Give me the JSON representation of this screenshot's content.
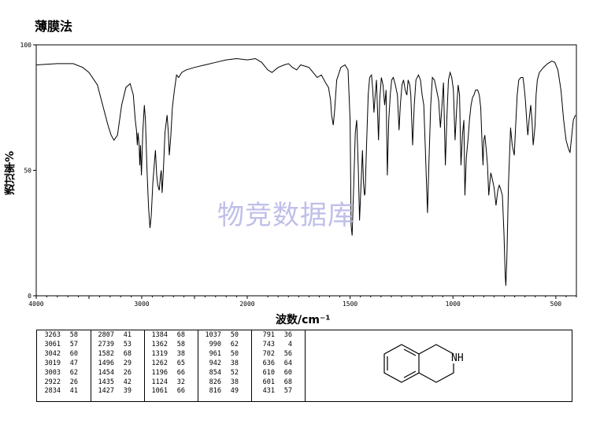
{
  "title": "薄膜法",
  "watermark": "物竞数据库",
  "chart_data": {
    "type": "line",
    "title": "薄膜法",
    "xlabel": "波数/cm⁻¹",
    "ylabel": "透过率%",
    "xlim": [
      4000,
      400
    ],
    "ylim": [
      0,
      100
    ],
    "x_ticks": [
      "4000",
      "3000",
      "2000",
      "1500",
      "1000",
      "500"
    ],
    "y_ticks": [
      "0",
      "50",
      "100"
    ],
    "series": [
      {
        "points": [
          [
            4000,
            92
          ],
          [
            3800,
            92.5
          ],
          [
            3650,
            92.5
          ],
          [
            3560,
            91
          ],
          [
            3500,
            89
          ],
          [
            3420,
            84
          ],
          [
            3370,
            76
          ],
          [
            3320,
            68
          ],
          [
            3290,
            64
          ],
          [
            3263,
            62
          ],
          [
            3230,
            64
          ],
          [
            3190,
            76
          ],
          [
            3150,
            83
          ],
          [
            3110,
            84.5
          ],
          [
            3080,
            80
          ],
          [
            3061,
            70
          ],
          [
            3050,
            66
          ],
          [
            3042,
            60
          ],
          [
            3035,
            65
          ],
          [
            3025,
            60
          ],
          [
            3019,
            52
          ],
          [
            3012,
            60
          ],
          [
            3003,
            48
          ],
          [
            2990,
            65
          ],
          [
            2975,
            76
          ],
          [
            2965,
            70
          ],
          [
            2950,
            50
          ],
          [
            2935,
            35
          ],
          [
            2922,
            27
          ],
          [
            2910,
            32
          ],
          [
            2895,
            45
          ],
          [
            2880,
            53
          ],
          [
            2870,
            58
          ],
          [
            2858,
            48
          ],
          [
            2848,
            44
          ],
          [
            2834,
            42
          ],
          [
            2822,
            48
          ],
          [
            2815,
            50
          ],
          [
            2807,
            41
          ],
          [
            2795,
            50
          ],
          [
            2780,
            65
          ],
          [
            2760,
            72
          ],
          [
            2748,
            65
          ],
          [
            2739,
            56
          ],
          [
            2725,
            63
          ],
          [
            2710,
            75
          ],
          [
            2690,
            82
          ],
          [
            2670,
            88
          ],
          [
            2650,
            87
          ],
          [
            2620,
            89
          ],
          [
            2580,
            90
          ],
          [
            2500,
            91
          ],
          [
            2400,
            92
          ],
          [
            2300,
            93
          ],
          [
            2200,
            94
          ],
          [
            2100,
            94.5
          ],
          [
            2000,
            94
          ],
          [
            1960,
            94.5
          ],
          [
            1930,
            93
          ],
          [
            1900,
            90
          ],
          [
            1880,
            89
          ],
          [
            1850,
            91
          ],
          [
            1820,
            92
          ],
          [
            1800,
            92.5
          ],
          [
            1780,
            91
          ],
          [
            1760,
            90
          ],
          [
            1740,
            92
          ],
          [
            1700,
            91
          ],
          [
            1680,
            89
          ],
          [
            1660,
            87
          ],
          [
            1640,
            88
          ],
          [
            1620,
            85
          ],
          [
            1605,
            83
          ],
          [
            1595,
            78
          ],
          [
            1590,
            72
          ],
          [
            1582,
            68
          ],
          [
            1575,
            74
          ],
          [
            1565,
            86
          ],
          [
            1545,
            91
          ],
          [
            1525,
            92
          ],
          [
            1510,
            90
          ],
          [
            1500,
            70
          ],
          [
            1495,
            28
          ],
          [
            1490,
            24
          ],
          [
            1482,
            45
          ],
          [
            1475,
            65
          ],
          [
            1468,
            70
          ],
          [
            1460,
            50
          ],
          [
            1454,
            30
          ],
          [
            1448,
            42
          ],
          [
            1440,
            58
          ],
          [
            1435,
            45
          ],
          [
            1430,
            40
          ],
          [
            1427,
            41
          ],
          [
            1420,
            60
          ],
          [
            1412,
            80
          ],
          [
            1405,
            87
          ],
          [
            1396,
            88
          ],
          [
            1390,
            82
          ],
          [
            1384,
            73
          ],
          [
            1378,
            80
          ],
          [
            1372,
            86
          ],
          [
            1362,
            62
          ],
          [
            1356,
            78
          ],
          [
            1348,
            87
          ],
          [
            1340,
            84
          ],
          [
            1332,
            76
          ],
          [
            1325,
            82
          ],
          [
            1319,
            48
          ],
          [
            1312,
            70
          ],
          [
            1305,
            80
          ],
          [
            1298,
            86
          ],
          [
            1290,
            87
          ],
          [
            1280,
            84
          ],
          [
            1270,
            80
          ],
          [
            1262,
            66
          ],
          [
            1256,
            76
          ],
          [
            1248,
            84
          ],
          [
            1240,
            86
          ],
          [
            1232,
            82
          ],
          [
            1224,
            80
          ],
          [
            1218,
            86
          ],
          [
            1210,
            84
          ],
          [
            1205,
            80
          ],
          [
            1196,
            60
          ],
          [
            1188,
            76
          ],
          [
            1180,
            86
          ],
          [
            1168,
            88
          ],
          [
            1158,
            86
          ],
          [
            1150,
            80
          ],
          [
            1142,
            76
          ],
          [
            1135,
            60
          ],
          [
            1124,
            33
          ],
          [
            1116,
            55
          ],
          [
            1108,
            76
          ],
          [
            1100,
            87
          ],
          [
            1090,
            86
          ],
          [
            1080,
            82
          ],
          [
            1070,
            78
          ],
          [
            1061,
            67
          ],
          [
            1054,
            75
          ],
          [
            1046,
            85
          ],
          [
            1037,
            52
          ],
          [
            1030,
            70
          ],
          [
            1022,
            86
          ],
          [
            1014,
            89
          ],
          [
            1006,
            87
          ],
          [
            998,
            82
          ],
          [
            990,
            62
          ],
          [
            982,
            75
          ],
          [
            975,
            84
          ],
          [
            968,
            80
          ],
          [
            961,
            52
          ],
          [
            954,
            64
          ],
          [
            947,
            70
          ],
          [
            942,
            40
          ],
          [
            935,
            55
          ],
          [
            927,
            62
          ],
          [
            920,
            70
          ],
          [
            912,
            76
          ],
          [
            905,
            79
          ],
          [
            898,
            80
          ],
          [
            890,
            82
          ],
          [
            880,
            82
          ],
          [
            872,
            80
          ],
          [
            865,
            75
          ],
          [
            858,
            60
          ],
          [
            854,
            52
          ],
          [
            850,
            62
          ],
          [
            845,
            64
          ],
          [
            838,
            58
          ],
          [
            832,
            52
          ],
          [
            826,
            40
          ],
          [
            822,
            44
          ],
          [
            816,
            49
          ],
          [
            810,
            47
          ],
          [
            805,
            45
          ],
          [
            800,
            43
          ],
          [
            791,
            36
          ],
          [
            782,
            42
          ],
          [
            775,
            44
          ],
          [
            770,
            43
          ],
          [
            760,
            40
          ],
          [
            752,
            25
          ],
          [
            746,
            8
          ],
          [
            743,
            4
          ],
          [
            738,
            15
          ],
          [
            730,
            45
          ],
          [
            720,
            67
          ],
          [
            712,
            60
          ],
          [
            702,
            56
          ],
          [
            695,
            68
          ],
          [
            688,
            80
          ],
          [
            680,
            86
          ],
          [
            670,
            87
          ],
          [
            660,
            87
          ],
          [
            655,
            84
          ],
          [
            648,
            78
          ],
          [
            640,
            68
          ],
          [
            636,
            64
          ],
          [
            630,
            70
          ],
          [
            622,
            76
          ],
          [
            616,
            70
          ],
          [
            610,
            60
          ],
          [
            604,
            65
          ],
          [
            601,
            68
          ],
          [
            596,
            80
          ],
          [
            590,
            86
          ],
          [
            580,
            89
          ],
          [
            560,
            91
          ],
          [
            540,
            92.5
          ],
          [
            520,
            93.5
          ],
          [
            505,
            93
          ],
          [
            490,
            90
          ],
          [
            475,
            82
          ],
          [
            462,
            70
          ],
          [
            450,
            62
          ],
          [
            440,
            59
          ],
          [
            431,
            57
          ],
          [
            425,
            62
          ],
          [
            415,
            70
          ],
          [
            405,
            72
          ]
        ]
      }
    ]
  },
  "peaks": {
    "columns": [
      [
        [
          "3263",
          "58"
        ],
        [
          "3061",
          "57"
        ],
        [
          "3042",
          "60"
        ],
        [
          "3019",
          "47"
        ],
        [
          "3003",
          "62"
        ],
        [
          "2922",
          "26"
        ],
        [
          "2834",
          "41"
        ]
      ],
      [
        [
          "2807",
          "41"
        ],
        [
          "2739",
          "53"
        ],
        [
          "1582",
          "68"
        ],
        [
          "1496",
          "29"
        ],
        [
          "1454",
          "26"
        ],
        [
          "1435",
          "42"
        ],
        [
          "1427",
          "39"
        ]
      ],
      [
        [
          "1384",
          "68"
        ],
        [
          "1362",
          "58"
        ],
        [
          "1319",
          "38"
        ],
        [
          "1262",
          "65"
        ],
        [
          "1196",
          "66"
        ],
        [
          "1124",
          "32"
        ],
        [
          "1061",
          "66"
        ]
      ],
      [
        [
          "1037",
          "50"
        ],
        [
          "990",
          "62"
        ],
        [
          "961",
          "50"
        ],
        [
          "942",
          "38"
        ],
        [
          "854",
          "52"
        ],
        [
          "826",
          "38"
        ],
        [
          "816",
          "49"
        ]
      ],
      [
        [
          "791",
          "36"
        ],
        [
          "743",
          "4"
        ],
        [
          "702",
          "56"
        ],
        [
          "636",
          "64"
        ],
        [
          "610",
          "60"
        ],
        [
          "601",
          "68"
        ],
        [
          "431",
          "57"
        ]
      ]
    ]
  },
  "molecule": {
    "label": "NH",
    "name": "1,2,3,4-tetrahydroisoquinoline structure"
  }
}
